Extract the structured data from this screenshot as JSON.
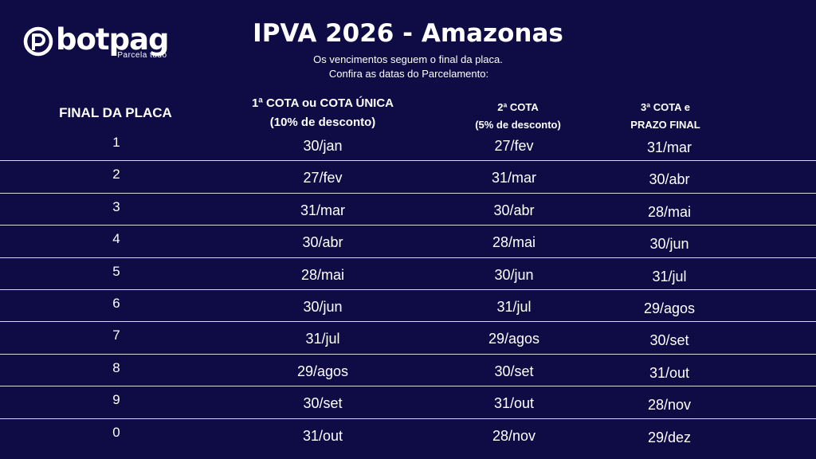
{
  "brand": {
    "name": "botpag",
    "tagline": "Parcela tudo"
  },
  "title": "IPVA 2026 - Amazonas",
  "subtitle_lines": [
    "Os vencimentos seguem o final da placa.",
    "Confira as datas do Parcelamento:"
  ],
  "headers": {
    "final": "FINAL DA PLACA",
    "cota1_line1": "1ª COTA ou COTA ÚNICA",
    "cota1_line2": "(10% de desconto)",
    "cota2_line1": "2ª COTA",
    "cota2_line2": "(5% de desconto)",
    "cota3_line1": "3ª COTA e",
    "cota3_line2": "PRAZO FINAL"
  },
  "rows": [
    {
      "final": "1",
      "cota1": "30/jan",
      "cota2": "27/fev",
      "cota3": "31/mar"
    },
    {
      "final": "2",
      "cota1": "27/fev",
      "cota2": "31/mar",
      "cota3": "30/abr"
    },
    {
      "final": "3",
      "cota1": "31/mar",
      "cota2": "30/abr",
      "cota3": "28/mai"
    },
    {
      "final": "4",
      "cota1": "30/abr",
      "cota2": "28/mai",
      "cota3": "30/jun"
    },
    {
      "final": "5",
      "cota1": "28/mai",
      "cota2": "30/jun",
      "cota3": "31/jul"
    },
    {
      "final": "6",
      "cota1": "30/jun",
      "cota2": "31/jul",
      "cota3": "29/agos"
    },
    {
      "final": "7",
      "cota1": "31/jul",
      "cota2": "29/agos",
      "cota3": "30/set"
    },
    {
      "final": "8",
      "cota1": "29/agos",
      "cota2": "30/set",
      "cota3": "31/out"
    },
    {
      "final": "9",
      "cota1": "30/set",
      "cota2": "31/out",
      "cota3": "28/nov"
    },
    {
      "final": "0",
      "cota1": "31/out",
      "cota2": "28/nov",
      "cota3": "29/dez"
    }
  ],
  "colors": {
    "background": "#0f0c45",
    "text": "#ffffff",
    "divider": "#d8d8e8"
  },
  "icons": {
    "logo": "botpag-logo-icon"
  }
}
